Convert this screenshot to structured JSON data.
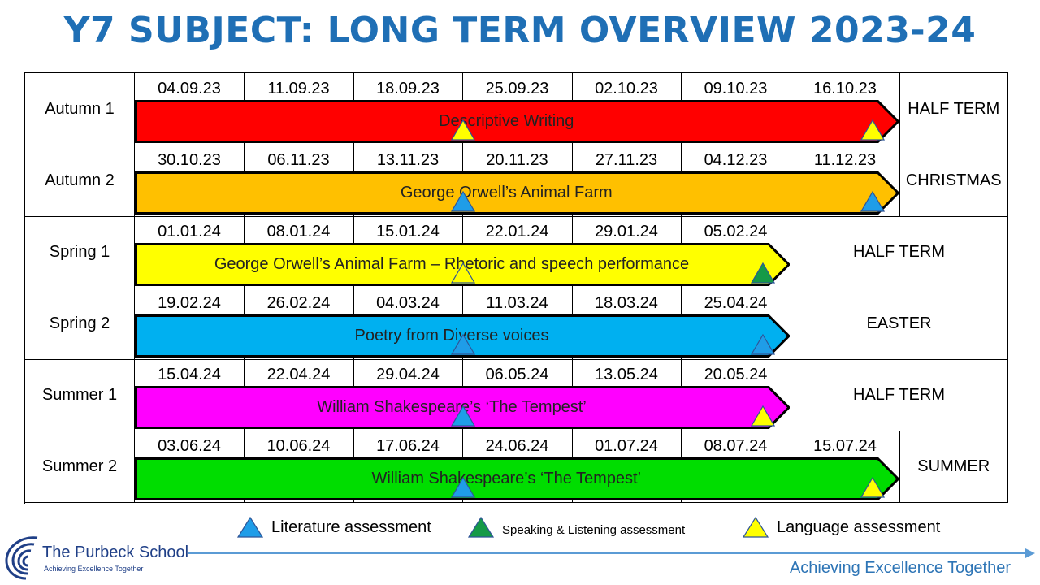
{
  "title": "Y7 SUBJECT: LONG TERM OVERVIEW 2023-24",
  "colors": {
    "title": "#1f6fb5",
    "literature": "#1f9de8",
    "speaking": "#159a47",
    "language": "#ffff00"
  },
  "terms": [
    {
      "label": "Autumn 1",
      "dates": [
        "04.09.23",
        "11.09.23",
        "18.09.23",
        "25.09.23",
        "02.10.23",
        "09.10.23",
        "16.10.23"
      ],
      "holiday": "HALF TERM",
      "unit": "Descriptive Writing",
      "bar_color": "#ff0000",
      "assessments": [
        "language",
        "language"
      ]
    },
    {
      "label": "Autumn 2",
      "dates": [
        "30.10.23",
        "06.11.23",
        "13.11.23",
        "20.11.23",
        "27.11.23",
        "04.12.23",
        "11.12.23"
      ],
      "holiday": "CHRISTMAS",
      "unit": "George Orwell’s Animal Farm",
      "bar_color": "#ffc000",
      "assessments": [
        "literature",
        "literature"
      ]
    },
    {
      "label": "Spring 1",
      "dates": [
        "01.01.24",
        "08.01.24",
        "15.01.24",
        "22.01.24",
        "29.01.24",
        "05.02.24"
      ],
      "holiday": "HALF TERM",
      "unit": "George Orwell’s Animal Farm – Rhetoric and speech performance",
      "bar_color": "#ffff00",
      "assessments": [
        "language",
        "speaking"
      ]
    },
    {
      "label": "Spring 2",
      "dates": [
        "19.02.24",
        "26.02.24",
        "04.03.24",
        "11.03.24",
        "18.03.24",
        "25.04.24"
      ],
      "holiday": "EASTER",
      "unit": "Poetry from Diverse voices",
      "bar_color": "#00b0f0",
      "assessments": [
        "literature",
        "literature"
      ]
    },
    {
      "label": "Summer 1",
      "dates": [
        "15.04.24",
        "22.04.24",
        "29.04.24",
        "06.05.24",
        "13.05.24",
        "20.05.24"
      ],
      "holiday": "HALF TERM",
      "unit": "William Shakespeare’s ‘The Tempest’",
      "bar_color": "#ff00ff",
      "assessments": [
        "literature",
        "language"
      ]
    },
    {
      "label": "Summer 2",
      "dates": [
        "03.06.24",
        "10.06.24",
        "17.06.24",
        "24.06.24",
        "01.07.24",
        "08.07.24",
        "15.07.24"
      ],
      "holiday": "SUMMER",
      "unit": "William Shakespeare’s ‘The Tempest’",
      "bar_color": "#00dd00",
      "assessments": [
        "literature",
        "language"
      ]
    }
  ],
  "legend": {
    "literature": "Literature assessment",
    "speaking": "Speaking & Listening assessment",
    "language": "Language assessment"
  },
  "footer": {
    "school_name": "The Purbeck School",
    "school_tagline": "Achieving Excellence Together",
    "motto": "Achieving Excellence Together"
  }
}
